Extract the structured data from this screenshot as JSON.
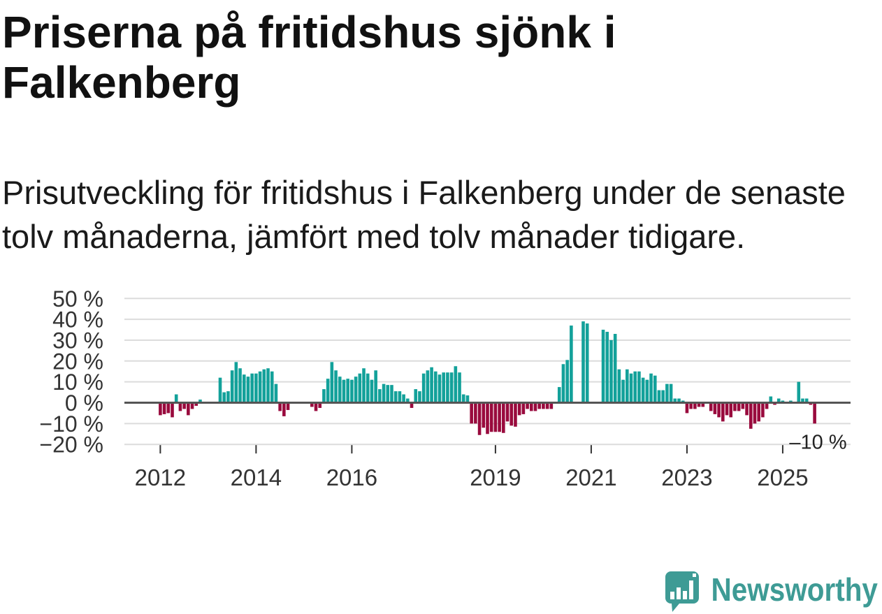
{
  "chart_data": {
    "type": "bar",
    "title": "Priserna på fritidshus sjönk i Falkenberg",
    "subtitle": "Prisutveckling för fritidshus i Falkenberg under de senaste tolv månaderna, jämfört med tolv månader tidigare.",
    "x": [
      "2012-01",
      "2012-02",
      "2012-03",
      "2012-04",
      "2012-05",
      "2012-06",
      "2012-07",
      "2012-08",
      "2012-09",
      "2012-10",
      "2012-11",
      "2013-04",
      "2013-05",
      "2013-06",
      "2013-07",
      "2013-08",
      "2013-09",
      "2013-10",
      "2013-11",
      "2013-12",
      "2014-01",
      "2014-02",
      "2014-03",
      "2014-04",
      "2014-05",
      "2014-06",
      "2014-07",
      "2014-08",
      "2014-09",
      "2015-03",
      "2015-04",
      "2015-05",
      "2015-06",
      "2015-07",
      "2015-08",
      "2015-09",
      "2015-10",
      "2015-11",
      "2015-12",
      "2016-01",
      "2016-02",
      "2016-03",
      "2016-04",
      "2016-05",
      "2016-06",
      "2016-07",
      "2016-08",
      "2016-09",
      "2016-10",
      "2016-11",
      "2016-12",
      "2017-01",
      "2017-02",
      "2017-03",
      "2017-04",
      "2017-05",
      "2017-06",
      "2017-07",
      "2017-08",
      "2017-09",
      "2017-10",
      "2017-11",
      "2017-12",
      "2018-01",
      "2018-02",
      "2018-03",
      "2018-04",
      "2018-05",
      "2018-06",
      "2018-07",
      "2018-08",
      "2018-09",
      "2018-10",
      "2018-11",
      "2018-12",
      "2019-01",
      "2019-02",
      "2019-03",
      "2019-04",
      "2019-05",
      "2019-06",
      "2019-07",
      "2019-08",
      "2019-09",
      "2019-10",
      "2019-11",
      "2019-12",
      "2020-01",
      "2020-02",
      "2020-03",
      "2020-05",
      "2020-06",
      "2020-07",
      "2020-08",
      "2020-11",
      "2020-12",
      "2021-04",
      "2021-05",
      "2021-06",
      "2021-07",
      "2021-08",
      "2021-09",
      "2021-10",
      "2021-11",
      "2021-12",
      "2022-01",
      "2022-02",
      "2022-03",
      "2022-04",
      "2022-05",
      "2022-06",
      "2022-07",
      "2022-08",
      "2022-09",
      "2022-10",
      "2022-11",
      "2022-12",
      "2023-01",
      "2023-02",
      "2023-03",
      "2023-04",
      "2023-05",
      "2023-07",
      "2023-08",
      "2023-09",
      "2023-10",
      "2023-11",
      "2023-12",
      "2024-01",
      "2024-02",
      "2024-03",
      "2024-04",
      "2024-05",
      "2024-06",
      "2024-07",
      "2024-08",
      "2024-09",
      "2024-10",
      "2024-11",
      "2024-12",
      "2025-01",
      "2025-02",
      "2025-03",
      "2025-05",
      "2025-06",
      "2025-07",
      "2025-08",
      "2025-09"
    ],
    "values": [
      -6,
      -5.5,
      -5,
      -7,
      4,
      -4,
      -3,
      -6,
      -3,
      -1.5,
      1.5,
      12,
      5,
      5.5,
      15.5,
      19.5,
      16.5,
      13.5,
      12.5,
      14,
      14,
      15,
      16,
      16.5,
      15,
      9,
      -4,
      -6.5,
      -3.5,
      -2,
      -4,
      -2.5,
      6.5,
      11.5,
      19.5,
      15.5,
      12.5,
      11,
      11.5,
      11,
      12.5,
      14,
      16.5,
      14,
      11,
      15.5,
      6.5,
      9,
      8.5,
      8.5,
      5.5,
      5.5,
      4,
      2,
      -2.5,
      6.5,
      5.5,
      14,
      15.5,
      17,
      15,
      13.5,
      14.5,
      14.5,
      14.5,
      17.5,
      14.5,
      4,
      3.5,
      -10,
      -10,
      -15.5,
      -12,
      -15,
      -14,
      -14,
      -14,
      -14.5,
      -9,
      -11,
      -11.5,
      -6,
      -5.5,
      -3,
      -4,
      -4,
      -3,
      -3,
      -3,
      -3,
      7.5,
      18.5,
      20.5,
      37,
      39,
      38,
      35,
      34,
      30,
      33,
      16,
      11,
      16,
      14,
      15,
      15,
      12,
      11,
      14,
      13,
      6,
      6,
      9,
      9,
      2,
      2,
      1,
      -5,
      -3,
      -3,
      -2,
      -2,
      -4,
      -5.5,
      -7,
      -9,
      -6,
      -7,
      -4,
      -4,
      -3,
      -6,
      -12.5,
      -10,
      -9,
      -7,
      -3,
      3,
      -1,
      2,
      1,
      0.5,
      1,
      10,
      2,
      2,
      -1,
      -10
    ],
    "xlim": [
      "2011-04",
      "2026-06"
    ],
    "ylim": [
      -20,
      50
    ],
    "yticks": [
      50,
      40,
      30,
      20,
      10,
      0,
      -10,
      -20
    ],
    "yticklabels": [
      "50 %",
      "40 %",
      "30 %",
      "20 %",
      "10 %",
      "0 %",
      "−10 %",
      "−20 %"
    ],
    "xticklabels": [
      "2012",
      "2014",
      "2016",
      "2019",
      "2021",
      "2023",
      "2025"
    ],
    "grid": true,
    "colors": {
      "positive": "#13a19a",
      "negative": "#990a3d",
      "grid": "#dcdcdc",
      "zero_line": "#555555"
    },
    "annotations": [
      {
        "text": "–10 %",
        "x": "2025-09",
        "y": -10
      }
    ]
  },
  "branding": {
    "logo_text": "Newsworthy",
    "logo_icon": "newsworthy-chart-bubble-icon",
    "brand_color": "#3e9b95"
  }
}
